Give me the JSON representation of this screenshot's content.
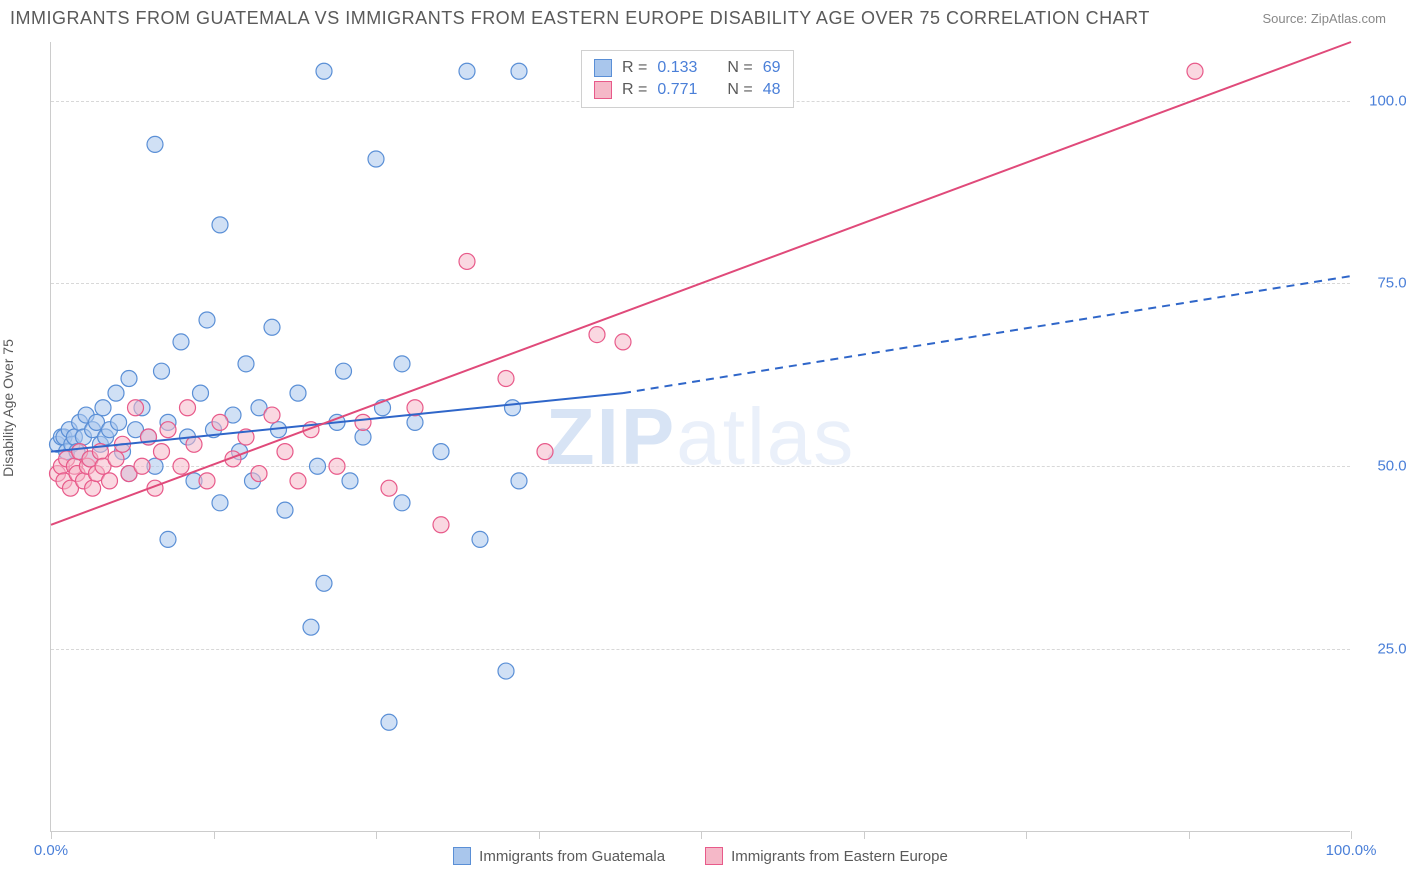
{
  "title": "IMMIGRANTS FROM GUATEMALA VS IMMIGRANTS FROM EASTERN EUROPE DISABILITY AGE OVER 75 CORRELATION CHART",
  "source": "Source: ZipAtlas.com",
  "ylabel": "Disability Age Over 75",
  "watermark_bold": "ZIP",
  "watermark_light": "atlas",
  "chart": {
    "type": "scatter",
    "xlim": [
      0,
      100
    ],
    "ylim": [
      0,
      108
    ],
    "xticks": [
      0,
      12.5,
      25,
      37.5,
      50,
      62.5,
      75,
      87.5,
      100
    ],
    "xtick_labels": {
      "0": "0.0%",
      "100": "100.0%"
    },
    "yticks": [
      25,
      50,
      75,
      100
    ],
    "ytick_labels": [
      "25.0%",
      "50.0%",
      "75.0%",
      "100.0%"
    ],
    "grid_color": "#d8d8d8",
    "axis_color": "#cccccc",
    "background": "#ffffff",
    "series": [
      {
        "name": "Immigrants from Guatemala",
        "color_fill": "#a9c6ec",
        "color_stroke": "#5a8fd6",
        "fill_opacity": 0.55,
        "marker_radius": 8,
        "r_value": "0.133",
        "n_value": "69",
        "trend": {
          "x1": 0,
          "y1": 52,
          "x2": 44,
          "y2": 60,
          "x2_dash": 100,
          "y2_dash": 76,
          "stroke": "#2f66c9",
          "width": 2
        },
        "points": [
          [
            0.5,
            53
          ],
          [
            0.8,
            54
          ],
          [
            1.0,
            54
          ],
          [
            1.2,
            52
          ],
          [
            1.4,
            55
          ],
          [
            1.6,
            53
          ],
          [
            1.8,
            54
          ],
          [
            2.0,
            52
          ],
          [
            2.2,
            56
          ],
          [
            2.5,
            54
          ],
          [
            2.7,
            57
          ],
          [
            3.0,
            51
          ],
          [
            3.2,
            55
          ],
          [
            3.5,
            56
          ],
          [
            3.8,
            53
          ],
          [
            4.0,
            58
          ],
          [
            4.2,
            54
          ],
          [
            4.5,
            55
          ],
          [
            5.0,
            60
          ],
          [
            5.2,
            56
          ],
          [
            5.5,
            52
          ],
          [
            6.0,
            62
          ],
          [
            6.0,
            49
          ],
          [
            6.5,
            55
          ],
          [
            7.0,
            58
          ],
          [
            7.5,
            54
          ],
          [
            8.0,
            50
          ],
          [
            8.0,
            94
          ],
          [
            8.5,
            63
          ],
          [
            9.0,
            56
          ],
          [
            9.0,
            40
          ],
          [
            10.0,
            67
          ],
          [
            10.5,
            54
          ],
          [
            11.0,
            48
          ],
          [
            11.5,
            60
          ],
          [
            12.0,
            70
          ],
          [
            12.5,
            55
          ],
          [
            13.0,
            83
          ],
          [
            13.0,
            45
          ],
          [
            14.0,
            57
          ],
          [
            14.5,
            52
          ],
          [
            15.0,
            64
          ],
          [
            15.5,
            48
          ],
          [
            16.0,
            58
          ],
          [
            17.0,
            69
          ],
          [
            17.5,
            55
          ],
          [
            18.0,
            44
          ],
          [
            19.0,
            60
          ],
          [
            20.0,
            28
          ],
          [
            20.5,
            50
          ],
          [
            21.0,
            104
          ],
          [
            21.0,
            34
          ],
          [
            22.0,
            56
          ],
          [
            22.5,
            63
          ],
          [
            23.0,
            48
          ],
          [
            24.0,
            54
          ],
          [
            25.0,
            92
          ],
          [
            25.5,
            58
          ],
          [
            26.0,
            15
          ],
          [
            27.0,
            45
          ],
          [
            27.0,
            64
          ],
          [
            28.0,
            56
          ],
          [
            30.0,
            52
          ],
          [
            32.0,
            104
          ],
          [
            33.0,
            40
          ],
          [
            35.0,
            22
          ],
          [
            35.5,
            58
          ],
          [
            36.0,
            48
          ],
          [
            36.0,
            104
          ]
        ]
      },
      {
        "name": "Immigrants from Eastern Europe",
        "color_fill": "#f5b8c8",
        "color_stroke": "#e85a8a",
        "fill_opacity": 0.55,
        "marker_radius": 8,
        "r_value": "0.771",
        "n_value": "48",
        "trend": {
          "x1": 0,
          "y1": 42,
          "x2": 100,
          "y2": 108,
          "stroke": "#e04a7a",
          "width": 2
        },
        "points": [
          [
            0.5,
            49
          ],
          [
            0.8,
            50
          ],
          [
            1.0,
            48
          ],
          [
            1.2,
            51
          ],
          [
            1.5,
            47
          ],
          [
            1.8,
            50
          ],
          [
            2.0,
            49
          ],
          [
            2.2,
            52
          ],
          [
            2.5,
            48
          ],
          [
            2.8,
            50
          ],
          [
            3.0,
            51
          ],
          [
            3.2,
            47
          ],
          [
            3.5,
            49
          ],
          [
            3.8,
            52
          ],
          [
            4.0,
            50
          ],
          [
            4.5,
            48
          ],
          [
            5.0,
            51
          ],
          [
            5.5,
            53
          ],
          [
            6.0,
            49
          ],
          [
            6.5,
            58
          ],
          [
            7.0,
            50
          ],
          [
            7.5,
            54
          ],
          [
            8.0,
            47
          ],
          [
            8.5,
            52
          ],
          [
            9.0,
            55
          ],
          [
            10.0,
            50
          ],
          [
            10.5,
            58
          ],
          [
            11.0,
            53
          ],
          [
            12.0,
            48
          ],
          [
            13.0,
            56
          ],
          [
            14.0,
            51
          ],
          [
            15.0,
            54
          ],
          [
            16.0,
            49
          ],
          [
            17.0,
            57
          ],
          [
            18.0,
            52
          ],
          [
            19.0,
            48
          ],
          [
            20.0,
            55
          ],
          [
            22.0,
            50
          ],
          [
            24.0,
            56
          ],
          [
            26.0,
            47
          ],
          [
            28.0,
            58
          ],
          [
            30.0,
            42
          ],
          [
            32.0,
            78
          ],
          [
            35.0,
            62
          ],
          [
            38.0,
            52
          ],
          [
            42.0,
            68
          ],
          [
            44.0,
            67
          ],
          [
            88.0,
            104
          ]
        ]
      }
    ],
    "legend_top_labels": {
      "r": "R =",
      "n": "N ="
    },
    "bottom_legend": [
      {
        "label": "Immigrants from Guatemala",
        "fill": "#a9c6ec",
        "stroke": "#5a8fd6"
      },
      {
        "label": "Immigrants from Eastern Europe",
        "fill": "#f5b8c8",
        "stroke": "#e85a8a"
      }
    ]
  }
}
